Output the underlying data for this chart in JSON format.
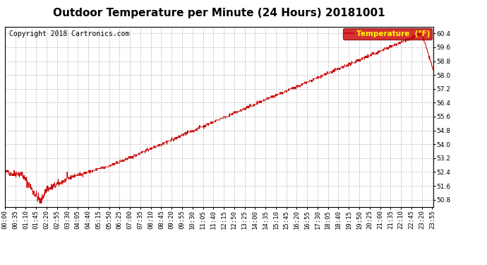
{
  "title": "Outdoor Temperature per Minute (24 Hours) 20181001",
  "copyright": "Copyright 2018 Cartronics.com",
  "legend_label": "Temperature  (°F)",
  "line_color": "#cc0000",
  "legend_bg": "#cc0000",
  "legend_fg": "#ffff00",
  "background_color": "#ffffff",
  "grid_color": "#aaaaaa",
  "ylim": [
    50.4,
    60.8
  ],
  "yticks": [
    50.8,
    51.6,
    52.4,
    53.2,
    54.0,
    54.8,
    55.6,
    56.4,
    57.2,
    58.0,
    58.8,
    59.6,
    60.4
  ],
  "xtick_interval_minutes": 35,
  "total_minutes": 1440,
  "title_fontsize": 11,
  "copyright_fontsize": 7,
  "axis_fontsize": 6.5
}
